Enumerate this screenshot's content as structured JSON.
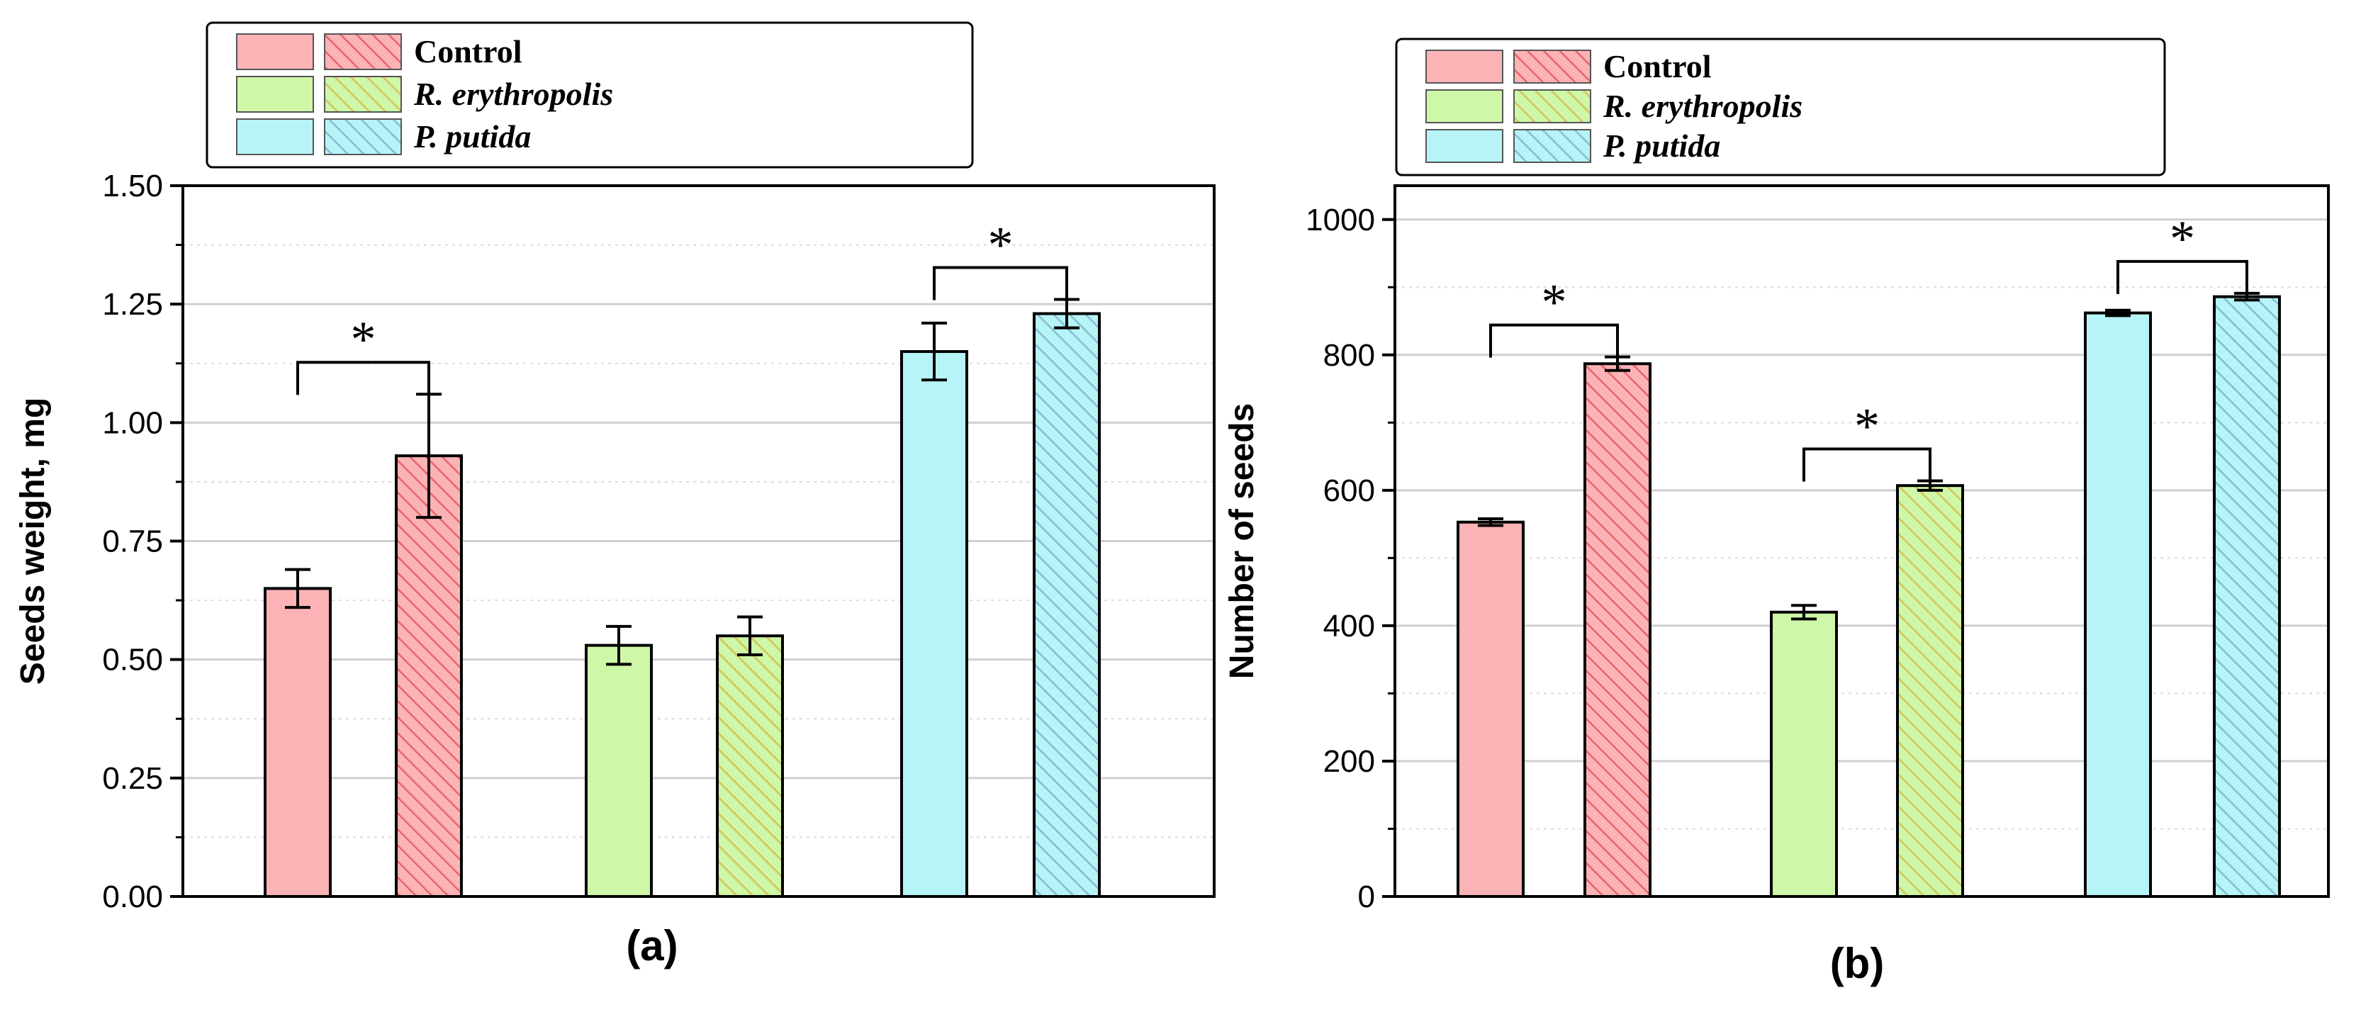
{
  "colors": {
    "control": "#fbb3b6",
    "control_hatch": "#e8656a",
    "r_erythropolis": "#cef7a8",
    "r_erythropolis_hatch": "#d2c45c",
    "p_putida": "#b6f4f7",
    "p_putida_hatch": "#86bcd2",
    "grid": "#cfcfcf"
  },
  "chart_data": [
    {
      "type": "bar",
      "panel_label": "(a)",
      "ylabel": "Seeds weight, mg",
      "xlabel": "",
      "ylim": [
        0,
        1.5
      ],
      "yticks": [
        "0.00",
        "0.25",
        "0.50",
        "0.75",
        "1.00",
        "1.25",
        "1.50"
      ],
      "grid": true,
      "legend": {
        "position": "top",
        "entries": [
          {
            "label": "Control",
            "italic": false
          },
          {
            "label": "R. erythropolis",
            "italic": true
          },
          {
            "label": "P. putida",
            "italic": true
          }
        ]
      },
      "groups": [
        "Control",
        "R. erythropolis",
        "P. putida"
      ],
      "series": [
        {
          "style": "solid",
          "values": [
            0.65,
            0.53,
            1.15
          ],
          "errors": [
            0.04,
            0.04,
            0.06
          ]
        },
        {
          "style": "hatched",
          "values": [
            0.93,
            0.55,
            1.23
          ],
          "errors": [
            0.13,
            0.04,
            0.03
          ]
        }
      ],
      "significance": [
        {
          "group": 0,
          "label": "*"
        },
        {
          "group": 2,
          "label": "*"
        }
      ]
    },
    {
      "type": "bar",
      "panel_label": "(b)",
      "ylabel": "Number of seeds",
      "xlabel": "",
      "ylim": [
        0,
        1050
      ],
      "yticks": [
        "0",
        "200",
        "400",
        "600",
        "800",
        "1000"
      ],
      "grid": true,
      "legend": {
        "position": "top",
        "entries": [
          {
            "label": "Control",
            "italic": false
          },
          {
            "label": "R. erythropolis",
            "italic": true
          },
          {
            "label": "P. putida",
            "italic": true
          }
        ]
      },
      "groups": [
        "Control",
        "R. erythropolis",
        "P. putida"
      ],
      "series": [
        {
          "style": "solid",
          "values": [
            553,
            420,
            862
          ],
          "errors": [
            5,
            10,
            4
          ]
        },
        {
          "style": "hatched",
          "values": [
            787,
            607,
            886
          ],
          "errors": [
            10,
            7,
            5
          ]
        }
      ],
      "significance": [
        {
          "group": 0,
          "label": "*"
        },
        {
          "group": 1,
          "label": "*"
        },
        {
          "group": 2,
          "label": "*"
        }
      ]
    }
  ]
}
